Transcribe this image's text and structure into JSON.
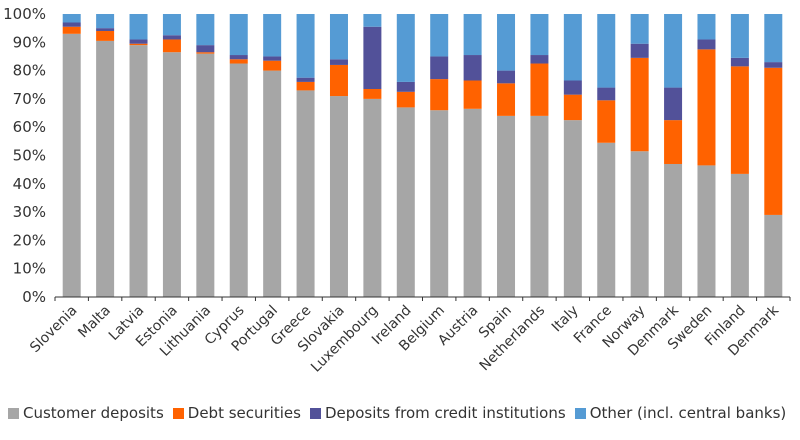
{
  "chart_data": {
    "type": "bar",
    "stacked": true,
    "title": "",
    "xlabel": "",
    "ylabel": "",
    "ylim": [
      0,
      100
    ],
    "y_ticks": [
      "0%",
      "10%",
      "20%",
      "30%",
      "40%",
      "50%",
      "60%",
      "70%",
      "80%",
      "90%",
      "100%"
    ],
    "grid": false,
    "legend_position": "bottom",
    "categories": [
      "Slovenia",
      "Malta",
      "Latvia",
      "Estonia",
      "Lithuania",
      "Cyprus",
      "Portugal",
      "Greece",
      "Slovakia",
      "Luxembourg",
      "Ireland",
      "Belgium",
      "Austria",
      "Spain",
      "Netherlands",
      "Italy",
      "France",
      "Norway",
      "Denmark",
      "Sweden",
      "Finland",
      "Denmark"
    ],
    "series": [
      {
        "name": "Customer deposits",
        "color": "#a6a6a6",
        "values": [
          93,
          90.5,
          89,
          86.5,
          86,
          82.5,
          80,
          73,
          71,
          70,
          67,
          66,
          66.5,
          64,
          64,
          62.5,
          54.5,
          51.5,
          47,
          46.5,
          43.5,
          29
        ]
      },
      {
        "name": "Debt securities",
        "color": "#ff6200",
        "values": [
          2.5,
          3.5,
          0.5,
          4.5,
          0.5,
          1.5,
          3.5,
          3,
          11,
          3.5,
          5.5,
          11,
          10,
          11.5,
          18.5,
          9,
          15,
          33,
          15.5,
          41,
          38,
          52
        ]
      },
      {
        "name": "Deposits from credit institutions",
        "color": "#525199",
        "values": [
          1.5,
          1,
          1.5,
          1.5,
          2.5,
          1.5,
          1.5,
          1.5,
          2,
          22,
          3.5,
          8,
          9,
          4.5,
          3,
          5,
          4.5,
          5,
          11.5,
          3.5,
          3,
          2
        ]
      },
      {
        "name": "Other (incl. central banks)",
        "color": "#559bd4",
        "values": [
          3,
          5,
          9,
          7.5,
          11,
          14.5,
          15,
          22.5,
          16,
          4.5,
          24,
          15,
          14.5,
          20,
          14.5,
          23.5,
          26,
          10.5,
          26,
          9,
          15.5,
          17
        ]
      }
    ]
  }
}
